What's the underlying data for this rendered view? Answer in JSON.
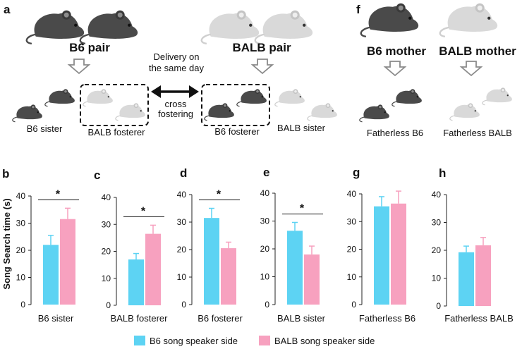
{
  "panel_letters": {
    "a": "a",
    "f": "f"
  },
  "schematic": {
    "b6_pair": "B6 pair",
    "balb_pair": "BALB pair",
    "delivery_line1": "Delivery on",
    "delivery_line2": "the same day",
    "cross_line1": "cross",
    "cross_line2": "fostering",
    "b6_sister": "B6 sister",
    "balb_fosterer": "BALB fosterer",
    "b6_fosterer": "B6 fosterer",
    "balb_sister": "BALB sister",
    "b6_mother": "B6 mother",
    "balb_mother": "BALB mother",
    "fatherless_b6": "Fatherless B6",
    "fatherless_balb": "Fatherless BALB"
  },
  "y_axis_label": "Song Search time (s)",
  "legend": [
    {
      "label": "B6 song speaker side",
      "color": "#5dd3f3"
    },
    {
      "label": "BALB song speaker side",
      "color": "#f7a1bf"
    }
  ],
  "colors": {
    "b6": "#5dd3f3",
    "balb": "#f7a1bf",
    "dark_mouse": "#4a4a4a",
    "light_mouse": "#d9d9d9"
  },
  "chart_data": [
    {
      "panel": "b",
      "type": "bar",
      "xlabel": "B6 sister",
      "ylim": [
        0,
        40
      ],
      "ticks": [
        0,
        10,
        20,
        30,
        40
      ],
      "series": [
        {
          "name": "B6 song speaker side",
          "values": [
            22
          ],
          "errors": [
            3.5
          ]
        },
        {
          "name": "BALB song speaker side",
          "values": [
            31.5
          ],
          "errors": [
            4
          ]
        }
      ],
      "significance": "*"
    },
    {
      "panel": "c",
      "type": "bar",
      "xlabel": "BALB fosterer",
      "ylim": [
        0,
        40
      ],
      "ticks": [
        0,
        10,
        20,
        30,
        40
      ],
      "series": [
        {
          "name": "B6 song speaker side",
          "values": [
            17
          ],
          "errors": [
            2.2
          ]
        },
        {
          "name": "BALB song speaker side",
          "values": [
            26.5
          ],
          "errors": [
            3.2
          ]
        }
      ],
      "significance": "*"
    },
    {
      "panel": "d",
      "type": "bar",
      "xlabel": "B6 fosterer",
      "ylim": [
        0,
        40
      ],
      "ticks": [
        0,
        10,
        20,
        30,
        40
      ],
      "series": [
        {
          "name": "B6 song speaker side",
          "values": [
            31.5
          ],
          "errors": [
            3.5
          ]
        },
        {
          "name": "BALB song speaker side",
          "values": [
            20.5
          ],
          "errors": [
            2.2
          ]
        }
      ],
      "significance": "*"
    },
    {
      "panel": "e",
      "type": "bar",
      "xlabel": "BALB sister",
      "ylim": [
        0,
        40
      ],
      "ticks": [
        0,
        10,
        20,
        30,
        40
      ],
      "series": [
        {
          "name": "B6 song speaker side",
          "values": [
            26.5
          ],
          "errors": [
            3
          ]
        },
        {
          "name": "BALB song speaker side",
          "values": [
            18
          ],
          "errors": [
            3
          ]
        }
      ],
      "significance": "*"
    },
    {
      "panel": "g",
      "type": "bar",
      "xlabel": "Fatherless B6",
      "ylim": [
        0,
        40
      ],
      "ticks": [
        0,
        10,
        20,
        30,
        40
      ],
      "series": [
        {
          "name": "B6 song speaker side",
          "values": [
            35.5
          ],
          "errors": [
            3.5
          ]
        },
        {
          "name": "BALB song speaker side",
          "values": [
            36.5
          ],
          "errors": [
            4.5
          ]
        }
      ],
      "significance": ""
    },
    {
      "panel": "h",
      "type": "bar",
      "xlabel": "Fatherless BALB",
      "ylim": [
        0,
        40
      ],
      "ticks": [
        0,
        10,
        20,
        30,
        40
      ],
      "series": [
        {
          "name": "B6 song speaker side",
          "values": [
            19.3
          ],
          "errors": [
            2.2
          ]
        },
        {
          "name": "BALB song speaker side",
          "values": [
            21.8
          ],
          "errors": [
            2.8
          ]
        }
      ],
      "significance": ""
    }
  ]
}
